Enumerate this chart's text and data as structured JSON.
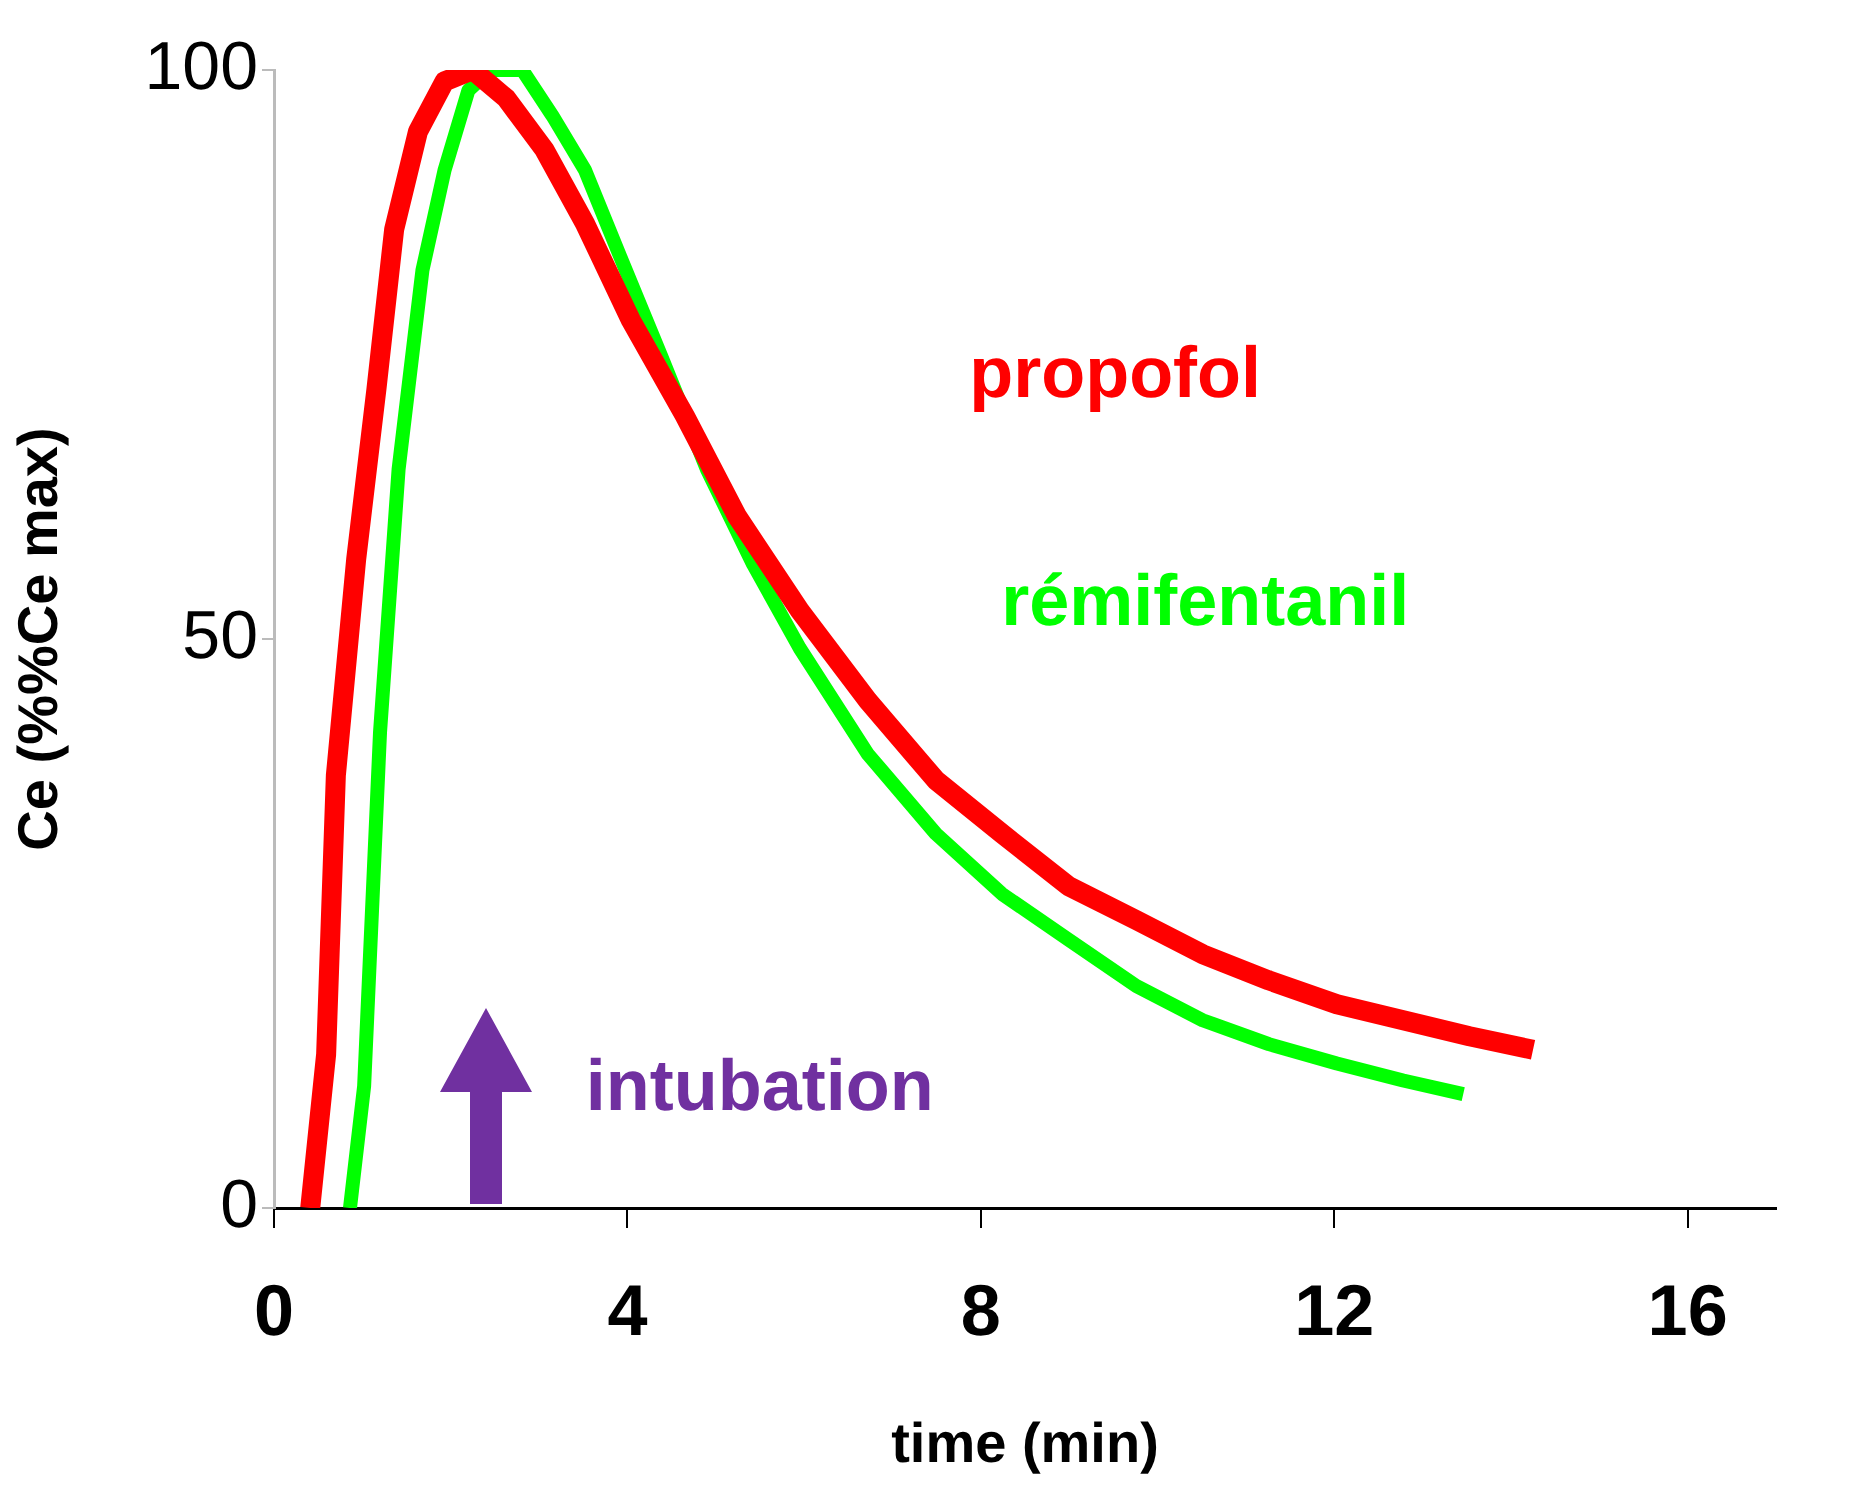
{
  "chart_data": {
    "type": "line",
    "xlabel": "time (min)",
    "ylabel": "Ce (%%Ce max)",
    "xlim": [
      0,
      17
    ],
    "xticks": [
      0,
      4,
      8,
      12,
      16
    ],
    "ylim": [
      0,
      100
    ],
    "yticks": [
      0,
      50,
      100
    ],
    "grid": false,
    "legend": false,
    "marker": "none",
    "line_style": "solid",
    "series": [
      {
        "name": "propofol",
        "color": "#ff0000",
        "x": [
          0.41,
          0.59,
          0.7,
          0.93,
          1.16,
          1.36,
          1.63,
          1.93,
          2.25,
          2.63,
          3.06,
          3.52,
          4.04,
          4.65,
          5.24,
          5.95,
          6.72,
          7.49,
          8.24,
          8.99,
          9.76,
          10.51,
          11.26,
          12.03,
          12.78,
          13.53,
          14.25
        ],
        "values": [
          0,
          13.5,
          38,
          57,
          72,
          86,
          94.6,
          99,
          100,
          97.5,
          93,
          86.5,
          78,
          69.6,
          60.8,
          52.5,
          44.6,
          37.6,
          32.9,
          28.3,
          25.3,
          22.3,
          20,
          17.9,
          16.5,
          15.1,
          13.9
        ]
      },
      {
        "name": "rémifentanil",
        "color": "#00ff00",
        "x": [
          0.86,
          1.02,
          1.2,
          1.41,
          1.68,
          1.93,
          2.2,
          2.45,
          2.81,
          3.15,
          3.52,
          3.95,
          4.38,
          4.9,
          5.42,
          5.95,
          6.72,
          7.49,
          8.24,
          8.99,
          9.76,
          10.51,
          11.26,
          12.03,
          12.78,
          13.46
        ],
        "values": [
          0,
          10.7,
          41.8,
          64.9,
          82.4,
          91.2,
          98.2,
          100,
          100,
          96,
          91.2,
          83,
          74.9,
          64.9,
          56.6,
          49.2,
          39.9,
          32.9,
          27.6,
          23.6,
          19.5,
          16.5,
          14.4,
          12.7,
          11.2,
          10
        ]
      }
    ],
    "annotations": [
      "intubation"
    ]
  }
}
